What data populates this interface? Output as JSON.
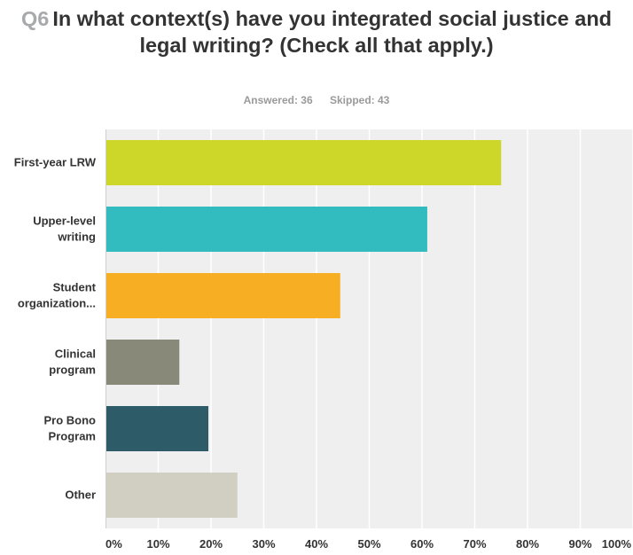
{
  "header": {
    "question_number": "Q6",
    "question_text": "In what context(s) have you integrated social justice and legal writing? (Check all that apply.)",
    "answered": "Answered: 36",
    "skipped": "Skipped: 43"
  },
  "chart_data": {
    "type": "bar",
    "orientation": "horizontal",
    "title": "Q6 In what context(s) have you integrated social justice and legal writing? (Check all that apply.)",
    "categories": [
      [
        "First-year LRW"
      ],
      [
        "Upper-level",
        "writing"
      ],
      [
        "Student",
        "organization..."
      ],
      [
        "Clinical",
        "program"
      ],
      [
        "Pro Bono",
        "Program"
      ],
      [
        "Other"
      ]
    ],
    "values": [
      75,
      61,
      44.5,
      14,
      19.5,
      25
    ],
    "colors": [
      "#cdd72a",
      "#33bcbf",
      "#f7ae22",
      "#89897a",
      "#2d5b68",
      "#d0cfc1"
    ],
    "x_ticks": [
      "0%",
      "10%",
      "20%",
      "30%",
      "40%",
      "50%",
      "60%",
      "70%",
      "80%",
      "90%",
      "100%"
    ],
    "xlim": [
      0,
      100
    ],
    "grid": true,
    "plot_background": "#efefef",
    "grid_color": "#ffffff"
  }
}
